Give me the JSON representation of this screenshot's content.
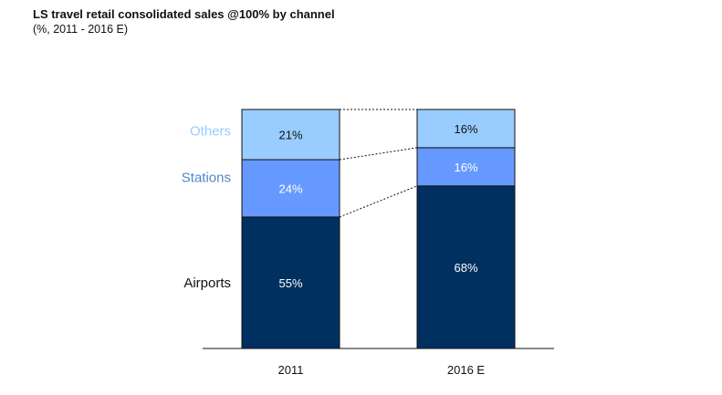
{
  "title": "LS travel retail consolidated sales @100% by channel",
  "subtitle": "(%, 2011 - 2016 E)",
  "colors": {
    "Airports": "#00305f",
    "Stations": "#6699ff",
    "Others": "#99ccff",
    "Others_label": "#99ccff",
    "Stations_label": "#4f86d0",
    "Airports_label": "#111111",
    "bar_border": "#111111"
  },
  "chart_data": {
    "type": "bar",
    "stacked": true,
    "categories": [
      "2011",
      "2016 E"
    ],
    "series": [
      {
        "name": "Airports",
        "values": [
          55,
          68
        ],
        "labels": [
          "55%",
          "68%"
        ]
      },
      {
        "name": "Stations",
        "values": [
          24,
          16
        ],
        "labels": [
          "24%",
          "16%"
        ]
      },
      {
        "name": "Others",
        "values": [
          21,
          16
        ],
        "labels": [
          "21%",
          "16%"
        ]
      }
    ],
    "ylim": [
      0,
      100
    ],
    "grid": false,
    "legend": "left, inline labels",
    "connector_lines": "dotted"
  }
}
